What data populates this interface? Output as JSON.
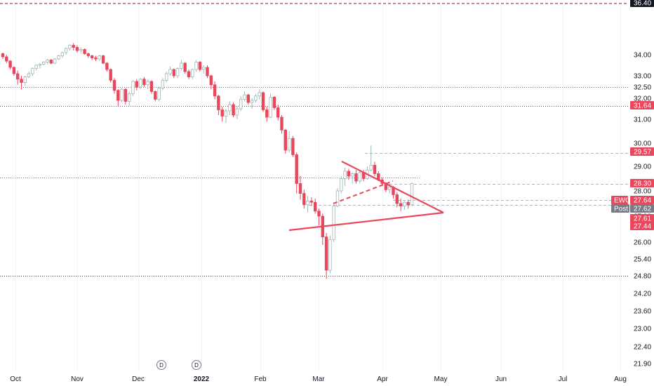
{
  "chart_data": {
    "type": "candlestick",
    "symbol": "EWG",
    "colors": {
      "up": "#9fb8b8",
      "down": "#e8475c",
      "pattern": "#e8475c",
      "grid": "#d1d4dc",
      "axis_label": "#131722",
      "tag_red": "#e8475c",
      "tag_gray": "#787b86",
      "tag_dark": "#131722",
      "hline": "#b2b5be",
      "dotted_teal": "#26a69a",
      "top_line": "#880e4f"
    },
    "y_ticks": [
      "34.00",
      "33.00",
      "32.00",
      "31.00",
      "30.00",
      "29.00",
      "28.00",
      "27.00",
      "26.00",
      "25.40",
      "24.80",
      "24.20",
      "23.60",
      "23.00",
      "22.40",
      "21.90"
    ],
    "y_top_partial": "32.50",
    "x_ticks": [
      "Oct",
      "Nov",
      "Dec",
      "2022",
      "Feb",
      "Mar",
      "Apr",
      "May",
      "Jun",
      "Jul",
      "Aug"
    ],
    "dividend_markers": [
      "D",
      "D"
    ],
    "price_tags": [
      {
        "label": "36.40",
        "style": "dark"
      },
      {
        "label": "31.64",
        "style": "red"
      },
      {
        "label": "29.57",
        "style": "red"
      },
      {
        "label": "28.30",
        "style": "red"
      },
      {
        "label": "27.64",
        "style": "red",
        "prefix": "EWG"
      },
      {
        "label": "27.62",
        "style": "gray",
        "prefix": "Post"
      },
      {
        "label": "27.61",
        "style": "red"
      },
      {
        "label": "27.44",
        "style": "red"
      }
    ],
    "horizontal_lines": [
      31.64,
      29.57,
      28.3,
      27.64,
      27.44,
      24.8,
      32.5
    ],
    "candles": [
      [
        34.05,
        34.1,
        33.8,
        33.9
      ],
      [
        33.9,
        34.0,
        33.6,
        33.7
      ],
      [
        33.7,
        33.75,
        33.3,
        33.4
      ],
      [
        33.4,
        33.45,
        33.0,
        33.1
      ],
      [
        33.1,
        33.25,
        32.6,
        32.85
      ],
      [
        32.85,
        33.0,
        32.4,
        32.7
      ],
      [
        32.7,
        33.0,
        32.55,
        32.95
      ],
      [
        32.95,
        33.2,
        32.9,
        33.1
      ],
      [
        33.1,
        33.4,
        33.0,
        33.35
      ],
      [
        33.35,
        33.55,
        33.25,
        33.5
      ],
      [
        33.5,
        33.6,
        33.35,
        33.55
      ],
      [
        33.55,
        33.7,
        33.5,
        33.65
      ],
      [
        33.65,
        33.8,
        33.55,
        33.75
      ],
      [
        33.75,
        33.8,
        33.55,
        33.6
      ],
      [
        33.6,
        33.85,
        33.55,
        33.8
      ],
      [
        33.8,
        34.0,
        33.75,
        33.95
      ],
      [
        33.95,
        34.15,
        33.85,
        34.1
      ],
      [
        34.1,
        34.35,
        34.0,
        34.3
      ],
      [
        34.3,
        34.5,
        34.2,
        34.45
      ],
      [
        34.45,
        34.55,
        34.2,
        34.35
      ],
      [
        34.35,
        34.45,
        34.1,
        34.2
      ],
      [
        34.2,
        34.35,
        34.05,
        34.25
      ],
      [
        34.25,
        34.3,
        34.0,
        34.05
      ],
      [
        34.05,
        34.1,
        33.85,
        33.95
      ],
      [
        33.95,
        34.0,
        33.75,
        33.85
      ],
      [
        33.85,
        33.95,
        33.7,
        33.8
      ],
      [
        33.8,
        34.0,
        33.7,
        33.95
      ],
      [
        33.95,
        34.0,
        33.55,
        33.6
      ],
      [
        33.6,
        33.65,
        33.2,
        33.3
      ],
      [
        33.3,
        33.35,
        32.7,
        32.8
      ],
      [
        32.8,
        32.9,
        32.2,
        32.35
      ],
      [
        32.35,
        32.4,
        31.6,
        31.9
      ],
      [
        31.9,
        32.45,
        31.8,
        32.4
      ],
      [
        32.4,
        32.45,
        31.7,
        31.85
      ],
      [
        31.85,
        32.3,
        31.65,
        32.2
      ],
      [
        32.2,
        32.8,
        32.1,
        32.75
      ],
      [
        32.75,
        32.85,
        32.35,
        32.5
      ],
      [
        32.5,
        32.9,
        32.4,
        32.85
      ],
      [
        32.85,
        32.95,
        32.5,
        32.6
      ],
      [
        32.6,
        32.85,
        32.4,
        32.75
      ],
      [
        32.75,
        32.8,
        32.2,
        32.3
      ],
      [
        32.3,
        32.35,
        31.85,
        31.95
      ],
      [
        31.95,
        32.5,
        31.85,
        32.45
      ],
      [
        32.45,
        32.9,
        32.35,
        32.8
      ],
      [
        32.8,
        33.2,
        32.7,
        33.1
      ],
      [
        33.1,
        33.45,
        33.0,
        33.3
      ],
      [
        33.3,
        33.35,
        32.9,
        33.0
      ],
      [
        33.0,
        33.4,
        32.9,
        33.35
      ],
      [
        33.35,
        33.75,
        33.25,
        33.6
      ],
      [
        33.6,
        33.65,
        33.1,
        33.2
      ],
      [
        33.2,
        33.3,
        32.85,
        32.95
      ],
      [
        32.95,
        33.35,
        32.85,
        33.3
      ],
      [
        33.3,
        33.75,
        33.2,
        33.65
      ],
      [
        33.65,
        33.7,
        33.2,
        33.3
      ],
      [
        33.3,
        33.5,
        33.1,
        33.4
      ],
      [
        33.4,
        33.5,
        32.9,
        33.0
      ],
      [
        33.0,
        33.05,
        32.4,
        32.6
      ],
      [
        32.6,
        32.75,
        31.95,
        32.1
      ],
      [
        32.1,
        32.15,
        31.2,
        31.45
      ],
      [
        31.45,
        31.6,
        30.9,
        31.15
      ],
      [
        31.15,
        31.5,
        30.85,
        31.4
      ],
      [
        31.4,
        31.85,
        31.2,
        31.7
      ],
      [
        31.7,
        31.8,
        31.1,
        31.2
      ],
      [
        31.2,
        31.6,
        31.0,
        31.5
      ],
      [
        31.5,
        32.1,
        31.4,
        31.95
      ],
      [
        31.95,
        32.3,
        31.85,
        32.15
      ],
      [
        32.15,
        32.2,
        31.7,
        31.8
      ],
      [
        31.8,
        32.0,
        31.5,
        31.9
      ],
      [
        31.9,
        32.2,
        31.8,
        32.1
      ],
      [
        32.1,
        32.4,
        31.95,
        32.25
      ],
      [
        32.25,
        32.3,
        31.35,
        31.45
      ],
      [
        31.45,
        31.6,
        30.9,
        31.1
      ],
      [
        31.1,
        32.2,
        31.05,
        32.05
      ],
      [
        32.05,
        32.1,
        31.45,
        31.55
      ],
      [
        31.55,
        31.7,
        30.95,
        31.1
      ],
      [
        31.1,
        31.2,
        30.4,
        30.55
      ],
      [
        30.55,
        30.6,
        29.55,
        29.7
      ],
      [
        29.7,
        30.5,
        29.6,
        30.2
      ],
      [
        30.2,
        30.3,
        29.4,
        29.5
      ],
      [
        29.5,
        29.6,
        27.9,
        28.3
      ],
      [
        28.3,
        28.6,
        27.65,
        27.9
      ],
      [
        27.9,
        28.05,
        27.3,
        27.45
      ],
      [
        27.45,
        27.8,
        27.15,
        27.6
      ],
      [
        27.6,
        27.75,
        27.4,
        27.55
      ],
      [
        27.55,
        27.7,
        27.1,
        27.2
      ],
      [
        27.2,
        27.3,
        26.65,
        27.0
      ],
      [
        27.0,
        27.1,
        25.9,
        26.2
      ],
      [
        26.2,
        26.35,
        24.7,
        25.0
      ],
      [
        25.0,
        26.25,
        24.9,
        26.1
      ],
      [
        26.1,
        27.55,
        26.0,
        27.4
      ],
      [
        27.4,
        28.1,
        27.35,
        28.0
      ],
      [
        28.0,
        28.6,
        27.9,
        28.5
      ],
      [
        28.5,
        28.95,
        28.2,
        28.8
      ],
      [
        28.8,
        28.9,
        28.45,
        28.6
      ],
      [
        28.6,
        28.75,
        28.3,
        28.7
      ],
      [
        28.7,
        28.85,
        28.3,
        28.4
      ],
      [
        28.4,
        28.85,
        28.3,
        28.75
      ],
      [
        28.75,
        28.85,
        28.4,
        28.5
      ],
      [
        28.5,
        29.0,
        28.45,
        28.85
      ],
      [
        28.85,
        29.9,
        28.8,
        29.05
      ],
      [
        29.05,
        29.2,
        28.6,
        28.7
      ],
      [
        28.7,
        28.8,
        28.4,
        28.45
      ],
      [
        28.45,
        28.55,
        28.2,
        28.3
      ],
      [
        28.3,
        28.35,
        27.95,
        28.05
      ],
      [
        28.05,
        28.3,
        27.9,
        28.15
      ],
      [
        28.15,
        28.2,
        27.7,
        27.85
      ],
      [
        27.85,
        27.95,
        27.35,
        27.5
      ],
      [
        27.5,
        27.7,
        27.2,
        27.4
      ],
      [
        27.4,
        27.6,
        27.25,
        27.55
      ],
      [
        27.55,
        27.65,
        27.3,
        27.45
      ],
      [
        27.45,
        28.35,
        27.4,
        28.3
      ]
    ]
  }
}
